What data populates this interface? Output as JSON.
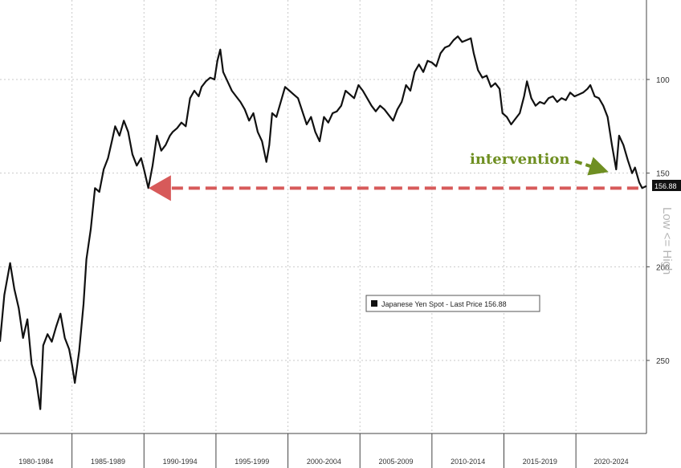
{
  "chart_data": {
    "type": "line",
    "title": "",
    "xlabel": "",
    "ylabel": "Low <= High",
    "x_range": [
      1980,
      2024.9
    ],
    "y_range": [
      300,
      50
    ],
    "y_inverted": true,
    "y_ticks": [
      100,
      150,
      200,
      250
    ],
    "x_categories": [
      "1980-1984",
      "1985-1989",
      "1990-1994",
      "1995-1999",
      "2000-2004",
      "2005-2009",
      "2010-2014",
      "2015-2019",
      "2020-2024"
    ],
    "grid": true,
    "legend": {
      "placement": "center-right",
      "label": "Japanese Yen Spot - Last Price 156.88"
    },
    "last_price": {
      "value": 156.88,
      "label": "156.88"
    },
    "series": [
      {
        "name": "Japanese Yen Spot",
        "color": "#111111",
        "points": [
          [
            1980.0,
            240
          ],
          [
            1980.3,
            215
          ],
          [
            1980.7,
            198
          ],
          [
            1981.0,
            212
          ],
          [
            1981.3,
            222
          ],
          [
            1981.6,
            238
          ],
          [
            1981.9,
            228
          ],
          [
            1982.2,
            252
          ],
          [
            1982.5,
            260
          ],
          [
            1982.8,
            276
          ],
          [
            1983.0,
            242
          ],
          [
            1983.3,
            236
          ],
          [
            1983.6,
            240
          ],
          [
            1983.9,
            232
          ],
          [
            1984.2,
            225
          ],
          [
            1984.5,
            238
          ],
          [
            1984.8,
            244
          ],
          [
            1985.0,
            252
          ],
          [
            1985.2,
            262
          ],
          [
            1985.5,
            245
          ],
          [
            1985.8,
            220
          ],
          [
            1986.0,
            196
          ],
          [
            1986.3,
            180
          ],
          [
            1986.6,
            158
          ],
          [
            1986.9,
            160
          ],
          [
            1987.2,
            148
          ],
          [
            1987.5,
            142
          ],
          [
            1987.8,
            132
          ],
          [
            1988.0,
            125
          ],
          [
            1988.3,
            130
          ],
          [
            1988.6,
            122
          ],
          [
            1988.9,
            128
          ],
          [
            1989.2,
            140
          ],
          [
            1989.5,
            146
          ],
          [
            1989.8,
            142
          ],
          [
            1990.0,
            148
          ],
          [
            1990.3,
            158
          ],
          [
            1990.6,
            146
          ],
          [
            1990.9,
            130
          ],
          [
            1991.2,
            138
          ],
          [
            1991.5,
            135
          ],
          [
            1991.8,
            130
          ],
          [
            1992.0,
            128
          ],
          [
            1992.3,
            126
          ],
          [
            1992.6,
            123
          ],
          [
            1992.9,
            125
          ],
          [
            1993.2,
            110
          ],
          [
            1993.5,
            106
          ],
          [
            1993.8,
            109
          ],
          [
            1994.0,
            104
          ],
          [
            1994.3,
            101
          ],
          [
            1994.6,
            99
          ],
          [
            1994.9,
            100
          ],
          [
            1995.1,
            90
          ],
          [
            1995.3,
            84
          ],
          [
            1995.5,
            96
          ],
          [
            1995.8,
            101
          ],
          [
            1996.1,
            106
          ],
          [
            1996.4,
            109
          ],
          [
            1996.7,
            112
          ],
          [
            1997.0,
            116
          ],
          [
            1997.3,
            122
          ],
          [
            1997.6,
            118
          ],
          [
            1997.9,
            128
          ],
          [
            1998.2,
            133
          ],
          [
            1998.5,
            144
          ],
          [
            1998.7,
            135
          ],
          [
            1998.9,
            118
          ],
          [
            1999.2,
            120
          ],
          [
            1999.5,
            112
          ],
          [
            1999.8,
            104
          ],
          [
            2000.1,
            106
          ],
          [
            2000.4,
            108
          ],
          [
            2000.7,
            110
          ],
          [
            2001.0,
            117
          ],
          [
            2001.3,
            124
          ],
          [
            2001.6,
            120
          ],
          [
            2001.9,
            128
          ],
          [
            2002.2,
            133
          ],
          [
            2002.5,
            120
          ],
          [
            2002.8,
            123
          ],
          [
            2003.1,
            118
          ],
          [
            2003.4,
            117
          ],
          [
            2003.7,
            114
          ],
          [
            2004.0,
            106
          ],
          [
            2004.3,
            108
          ],
          [
            2004.6,
            110
          ],
          [
            2004.9,
            103
          ],
          [
            2005.2,
            106
          ],
          [
            2005.5,
            110
          ],
          [
            2005.8,
            114
          ],
          [
            2006.1,
            117
          ],
          [
            2006.4,
            114
          ],
          [
            2006.7,
            116
          ],
          [
            2007.0,
            119
          ],
          [
            2007.3,
            122
          ],
          [
            2007.6,
            116
          ],
          [
            2007.9,
            112
          ],
          [
            2008.2,
            103
          ],
          [
            2008.5,
            106
          ],
          [
            2008.8,
            96
          ],
          [
            2009.1,
            92
          ],
          [
            2009.4,
            96
          ],
          [
            2009.7,
            90
          ],
          [
            2010.0,
            91
          ],
          [
            2010.3,
            93
          ],
          [
            2010.6,
            86
          ],
          [
            2010.9,
            83
          ],
          [
            2011.2,
            82
          ],
          [
            2011.5,
            79
          ],
          [
            2011.8,
            77
          ],
          [
            2012.1,
            80
          ],
          [
            2012.4,
            79
          ],
          [
            2012.7,
            78
          ],
          [
            2012.9,
            86
          ],
          [
            2013.2,
            95
          ],
          [
            2013.5,
            99
          ],
          [
            2013.8,
            98
          ],
          [
            2014.1,
            104
          ],
          [
            2014.4,
            102
          ],
          [
            2014.7,
            105
          ],
          [
            2014.9,
            118
          ],
          [
            2015.2,
            120
          ],
          [
            2015.5,
            124
          ],
          [
            2015.8,
            121
          ],
          [
            2016.1,
            118
          ],
          [
            2016.4,
            109
          ],
          [
            2016.6,
            101
          ],
          [
            2016.9,
            110
          ],
          [
            2017.2,
            114
          ],
          [
            2017.5,
            112
          ],
          [
            2017.8,
            113
          ],
          [
            2018.1,
            110
          ],
          [
            2018.4,
            109
          ],
          [
            2018.7,
            112
          ],
          [
            2019.0,
            110
          ],
          [
            2019.3,
            111
          ],
          [
            2019.6,
            107
          ],
          [
            2019.9,
            109
          ],
          [
            2020.2,
            108
          ],
          [
            2020.5,
            107
          ],
          [
            2020.8,
            105
          ],
          [
            2021.0,
            103
          ],
          [
            2021.3,
            109
          ],
          [
            2021.6,
            110
          ],
          [
            2021.9,
            114
          ],
          [
            2022.2,
            120
          ],
          [
            2022.5,
            135
          ],
          [
            2022.8,
            148
          ],
          [
            2023.0,
            130
          ],
          [
            2023.3,
            135
          ],
          [
            2023.6,
            143
          ],
          [
            2023.9,
            150
          ],
          [
            2024.1,
            147
          ],
          [
            2024.4,
            155
          ],
          [
            2024.6,
            158
          ],
          [
            2024.9,
            156.88
          ]
        ]
      },
      {
        "name": "",
        "color": "#d75a5a",
        "dashed": true,
        "points": [
          [
            1990.2,
            158
          ],
          [
            2024.6,
            158
          ]
        ]
      }
    ],
    "annotations": [
      {
        "text": "intervention",
        "color": "#6f8f22"
      }
    ]
  }
}
